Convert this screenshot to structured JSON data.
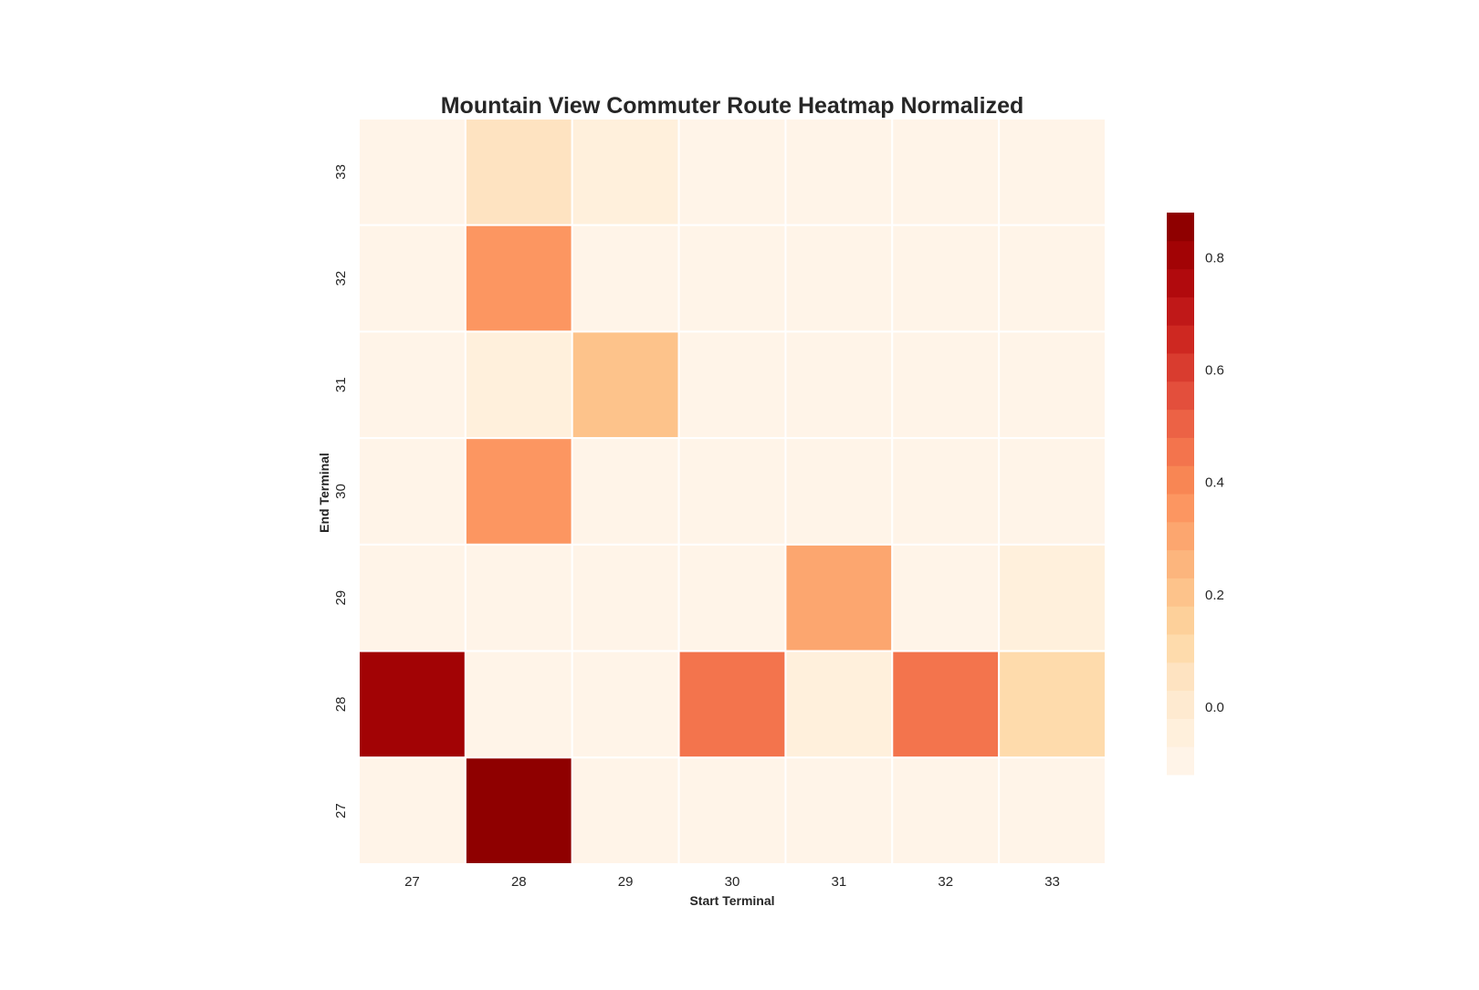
{
  "chart_data": {
    "type": "heatmap",
    "title": "Mountain View Commuter Route Heatmap Normalized",
    "xlabel": "Start Terminal",
    "ylabel": "End Terminal",
    "x_categories": [
      "27",
      "28",
      "29",
      "30",
      "31",
      "32",
      "33"
    ],
    "y_categories": [
      "33",
      "32",
      "31",
      "30",
      "29",
      "28",
      "27"
    ],
    "values": [
      [
        -0.1,
        0.06,
        -0.02,
        -0.1,
        -0.1,
        -0.1,
        -0.1
      ],
      [
        -0.1,
        0.34,
        -0.1,
        -0.1,
        -0.1,
        -0.1,
        -0.1
      ],
      [
        -0.1,
        -0.03,
        0.23,
        -0.1,
        -0.1,
        -0.1,
        -0.1
      ],
      [
        -0.1,
        0.35,
        -0.1,
        -0.1,
        -0.1,
        -0.1,
        -0.1
      ],
      [
        -0.1,
        -0.08,
        -0.1,
        -0.1,
        0.3,
        -0.1,
        -0.02
      ],
      [
        0.81,
        -0.09,
        -0.1,
        0.48,
        -0.04,
        0.48,
        0.09
      ],
      [
        -0.1,
        0.88,
        -0.1,
        -0.1,
        -0.1,
        -0.1,
        -0.1
      ]
    ],
    "colorbar": {
      "min": -0.12,
      "max": 0.88,
      "levels": 20,
      "ticks": [
        "0.8",
        "0.6",
        "0.4",
        "0.2",
        "0.0"
      ],
      "tick_values": [
        0.8,
        0.6,
        0.4,
        0.2,
        0.0
      ],
      "palette": [
        "#fff4e8",
        "#fff0dc",
        "#feead0",
        "#fee3c1",
        "#fedbac",
        "#fdd09a",
        "#fdc38b",
        "#fcb57d",
        "#fca66f",
        "#fc9661",
        "#f88654",
        "#f3744d",
        "#ec6245",
        "#e34f3c",
        "#d93c2f",
        "#ce2821",
        "#c01818",
        "#b10a0d",
        "#a20305",
        "#8f0000"
      ]
    },
    "legend": "colorbar-right",
    "grid": false
  }
}
